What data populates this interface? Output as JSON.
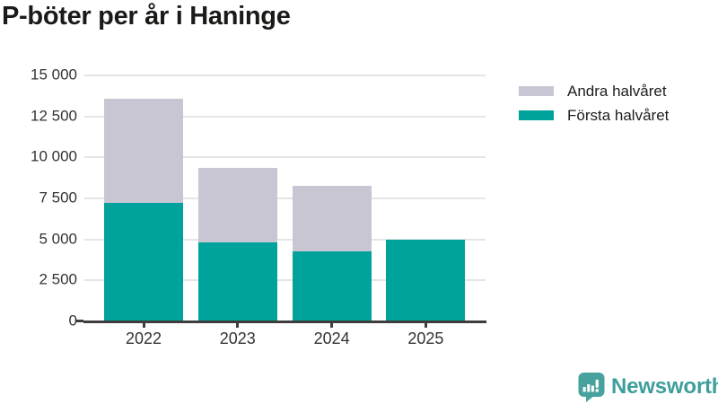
{
  "title": "P-böter per år i Haninge",
  "chart_data": {
    "type": "bar",
    "stacked": true,
    "title": "P-böter per år i Haninge",
    "categories": [
      "2022",
      "2023",
      "2024",
      "2025"
    ],
    "series": [
      {
        "name": "Första halvåret",
        "color": "#00A39C",
        "values": [
          7250,
          4800,
          4250,
          5000
        ]
      },
      {
        "name": "Andra halvåret",
        "color": "#C8C6D2",
        "values": [
          6300,
          4550,
          4000,
          0
        ]
      }
    ],
    "totals": [
      13550,
      9350,
      8250,
      5000
    ],
    "xlabel": "",
    "ylabel": "",
    "ylim": [
      0,
      15000
    ],
    "yticks": [
      0,
      2500,
      5000,
      7500,
      10000,
      12500,
      15000
    ],
    "ytick_labels": [
      "0",
      "2 500",
      "5 000",
      "7 500",
      "10 000",
      "12 500",
      "15 000"
    ],
    "grid": true,
    "legend_position": "top-right"
  },
  "legend": {
    "items": [
      {
        "label": "Andra halvåret",
        "color": "#C8C6D2"
      },
      {
        "label": "Första halvåret",
        "color": "#00A39C"
      }
    ]
  },
  "branding": {
    "logo_text": "Newsworthy",
    "logo_color": "#3E9E9B",
    "logo_icon": "bar-chart-speech-bubble-icon",
    "logo_icon_color": "#47A29E"
  },
  "colors": {
    "first_half_bar": "#00A39C",
    "second_half_bar": "#C8C6D2",
    "gridline": "#E5E5E5",
    "axis": "#3D3D3D",
    "tick_text": "#333333",
    "title_text": "#1A1A18",
    "background": "#FFFFFF"
  }
}
